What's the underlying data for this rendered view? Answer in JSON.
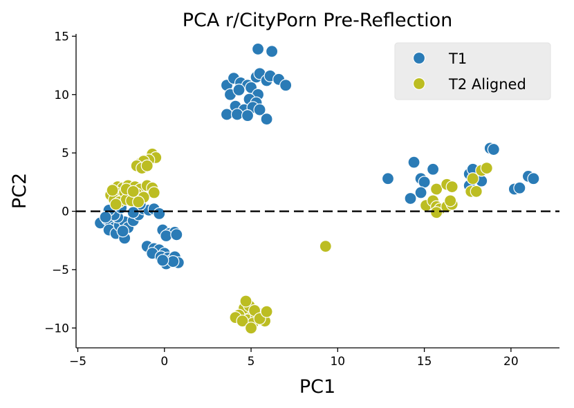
{
  "chart_data": {
    "type": "scatter",
    "title": "PCA r/CityPorn Pre-Reflection",
    "xlabel": "PC1",
    "ylabel": "PC2",
    "xlim": [
      -5.1,
      22.8
    ],
    "ylim": [
      -11.7,
      15.2
    ],
    "xticks": [
      -5,
      0,
      5,
      10,
      15,
      20
    ],
    "yticks": [
      -10,
      -5,
      0,
      5,
      10,
      15
    ],
    "xtick_labels": [
      "−5",
      "0",
      "5",
      "10",
      "15",
      "20"
    ],
    "ytick_labels": [
      "−10",
      "−5",
      "0",
      "5",
      "10",
      "15"
    ],
    "reference_line": {
      "y": 0,
      "style": "dashed"
    },
    "legend": {
      "position": "top-right"
    },
    "series": [
      {
        "name": "T1",
        "color": "#2a7bb6",
        "points": [
          [
            5.4,
            13.9
          ],
          [
            6.2,
            13.7
          ],
          [
            3.6,
            10.8
          ],
          [
            4.0,
            11.4
          ],
          [
            4.4,
            11.0
          ],
          [
            4.8,
            10.8
          ],
          [
            5.3,
            11.5
          ],
          [
            5.5,
            11.8
          ],
          [
            5.9,
            11.2
          ],
          [
            6.1,
            11.6
          ],
          [
            6.6,
            11.3
          ],
          [
            7.0,
            10.8
          ],
          [
            3.8,
            10.0
          ],
          [
            4.3,
            10.4
          ],
          [
            5.0,
            10.6
          ],
          [
            5.4,
            10.0
          ],
          [
            4.9,
            9.6
          ],
          [
            5.3,
            9.3
          ],
          [
            4.1,
            9.0
          ],
          [
            4.6,
            8.7
          ],
          [
            5.1,
            8.9
          ],
          [
            5.5,
            8.7
          ],
          [
            3.6,
            8.3
          ],
          [
            4.2,
            8.3
          ],
          [
            4.8,
            8.2
          ],
          [
            5.9,
            7.9
          ],
          [
            12.9,
            2.8
          ],
          [
            14.4,
            4.2
          ],
          [
            15.5,
            3.6
          ],
          [
            14.8,
            2.8
          ],
          [
            15.0,
            2.5
          ],
          [
            14.8,
            1.6
          ],
          [
            14.2,
            1.1
          ],
          [
            17.6,
            3.2
          ],
          [
            17.8,
            3.6
          ],
          [
            18.2,
            2.8
          ],
          [
            18.3,
            2.6
          ],
          [
            17.6,
            2.2
          ],
          [
            18.8,
            5.4
          ],
          [
            19.0,
            5.3
          ],
          [
            20.2,
            1.9
          ],
          [
            20.5,
            2.0
          ],
          [
            21.0,
            3.0
          ],
          [
            21.3,
            2.8
          ],
          [
            -3.7,
            -1.0
          ],
          [
            -3.3,
            -0.7
          ],
          [
            -3.1,
            -1.0
          ],
          [
            -2.9,
            -1.4
          ],
          [
            -3.2,
            -1.6
          ],
          [
            -2.8,
            -1.9
          ],
          [
            -2.3,
            -2.3
          ],
          [
            -2.6,
            -1.2
          ],
          [
            -2.3,
            -0.9
          ],
          [
            -2.7,
            -0.5
          ],
          [
            -2.9,
            -0.3
          ],
          [
            -3.2,
            0.1
          ],
          [
            -2.1,
            -1.4
          ],
          [
            -1.8,
            -0.8
          ],
          [
            -1.5,
            -0.3
          ],
          [
            -1.2,
            0.2
          ],
          [
            -0.9,
            0.1
          ],
          [
            -1.4,
            0.6
          ],
          [
            -0.6,
            0.2
          ],
          [
            -0.3,
            -0.2
          ],
          [
            -1.8,
            -0.1
          ],
          [
            -2.5,
            0.3
          ],
          [
            -3.4,
            -0.5
          ],
          [
            -2.4,
            -1.7
          ],
          [
            -0.1,
            -1.6
          ],
          [
            0.3,
            -1.9
          ],
          [
            0.6,
            -1.8
          ],
          [
            0.1,
            -2.1
          ],
          [
            0.7,
            -2.0
          ],
          [
            -1.0,
            -3.0
          ],
          [
            -0.6,
            -3.2
          ],
          [
            -0.3,
            -3.3
          ],
          [
            -0.7,
            -3.6
          ],
          [
            0.0,
            -3.6
          ],
          [
            -0.2,
            -3.9
          ],
          [
            0.2,
            -4.0
          ],
          [
            0.4,
            -4.2
          ],
          [
            0.6,
            -3.9
          ],
          [
            0.8,
            -4.4
          ],
          [
            0.1,
            -4.5
          ],
          [
            0.5,
            -4.3
          ],
          [
            -0.1,
            -4.2
          ]
        ]
      },
      {
        "name": "T2 Aligned",
        "color": "#bcbd22",
        "points": [
          [
            -0.7,
            4.9
          ],
          [
            -0.5,
            4.6
          ],
          [
            -0.9,
            4.4
          ],
          [
            -1.4,
            4.1
          ],
          [
            -1.2,
            4.3
          ],
          [
            -1.6,
            3.9
          ],
          [
            -1.3,
            3.7
          ],
          [
            -1.0,
            3.9
          ],
          [
            -2.7,
            2.1
          ],
          [
            -2.4,
            2.0
          ],
          [
            -2.1,
            2.2
          ],
          [
            -1.7,
            2.1
          ],
          [
            -1.4,
            1.9
          ],
          [
            -1.0,
            2.2
          ],
          [
            -0.7,
            2.0
          ],
          [
            -0.6,
            1.6
          ],
          [
            -3.1,
            1.4
          ],
          [
            -2.8,
            1.6
          ],
          [
            -2.5,
            1.3
          ],
          [
            -2.3,
            1.6
          ],
          [
            -2.0,
            1.3
          ],
          [
            -1.6,
            1.5
          ],
          [
            -1.2,
            1.2
          ],
          [
            -2.9,
            1.0
          ],
          [
            -2.6,
            0.8
          ],
          [
            -2.2,
            1.0
          ],
          [
            -1.9,
            0.9
          ],
          [
            -1.5,
            0.8
          ],
          [
            -2.8,
            0.6
          ],
          [
            -3.0,
            1.8
          ],
          [
            -2.2,
            1.9
          ],
          [
            -1.8,
            1.7
          ],
          [
            4.4,
            -9.2
          ],
          [
            4.7,
            -8.9
          ],
          [
            5.0,
            -8.7
          ],
          [
            4.8,
            -9.3
          ],
          [
            5.3,
            -9.0
          ],
          [
            5.6,
            -8.8
          ],
          [
            5.8,
            -9.4
          ],
          [
            4.6,
            -8.3
          ],
          [
            4.9,
            -8.1
          ],
          [
            5.2,
            -8.5
          ],
          [
            4.3,
            -8.9
          ],
          [
            4.1,
            -9.1
          ],
          [
            4.7,
            -7.7
          ],
          [
            5.1,
            -9.6
          ],
          [
            5.5,
            -9.2
          ],
          [
            5.9,
            -8.6
          ],
          [
            4.5,
            -9.4
          ],
          [
            5.0,
            -10.0
          ],
          [
            15.1,
            0.5
          ],
          [
            15.5,
            0.9
          ],
          [
            15.7,
            0.4
          ],
          [
            15.9,
            0.2
          ],
          [
            15.7,
            -0.1
          ],
          [
            16.3,
            0.4
          ],
          [
            16.6,
            0.6
          ],
          [
            16.5,
            0.9
          ],
          [
            15.7,
            1.9
          ],
          [
            16.3,
            2.3
          ],
          [
            16.6,
            2.1
          ],
          [
            17.7,
            1.7
          ],
          [
            18.0,
            1.7
          ],
          [
            17.8,
            2.8
          ],
          [
            18.3,
            3.5
          ],
          [
            18.6,
            3.7
          ],
          [
            9.3,
            -3.0
          ]
        ]
      }
    ]
  }
}
